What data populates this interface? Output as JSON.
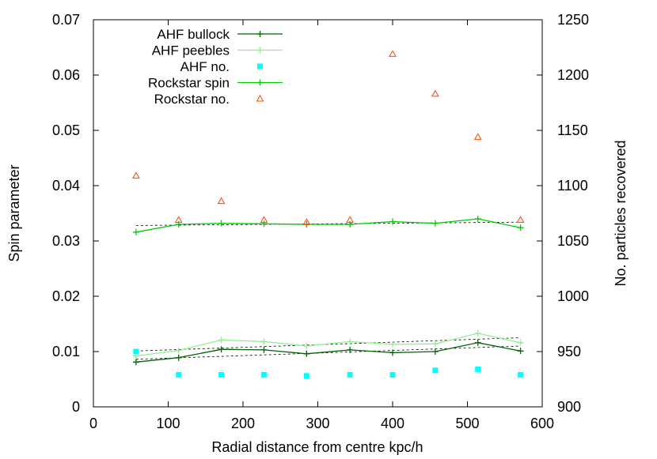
{
  "chart_data": {
    "type": "line",
    "xlabel": "Radial distance from centre kpc/h",
    "ylabel": "Spin parameter",
    "y2label": "No. particles recovered",
    "xlim": [
      0,
      600
    ],
    "ylim": [
      0,
      0.07
    ],
    "y2lim": [
      900,
      1250
    ],
    "xticks": [
      0,
      100,
      200,
      300,
      400,
      500,
      600
    ],
    "yticks": [
      0,
      0.01,
      0.02,
      0.03,
      0.04,
      0.05,
      0.06,
      0.07
    ],
    "y2ticks": [
      900,
      950,
      1000,
      1050,
      1100,
      1150,
      1200,
      1250
    ],
    "xtick_labels": [
      "0",
      "100",
      "200",
      "300",
      "400",
      "500",
      "600"
    ],
    "ytick_labels": [
      "0",
      "0.01",
      "0.02",
      "0.03",
      "0.04",
      "0.05",
      "0.06",
      "0.07"
    ],
    "y2tick_labels": [
      "900",
      "950",
      "1000",
      "1050",
      "1100",
      "1150",
      "1200",
      "1250"
    ],
    "grid": false,
    "legend_position": "top-left",
    "x": [
      57,
      114,
      171,
      228,
      285,
      343,
      400,
      457,
      514,
      571
    ],
    "series": [
      {
        "name": "AHF bullock",
        "axis": "left",
        "style": "line-plus",
        "color": "#006400",
        "values": [
          0.0081,
          0.0089,
          0.0104,
          0.0103,
          0.0096,
          0.0103,
          0.0098,
          0.01,
          0.0116,
          0.0101
        ],
        "fit": [
          0.0086,
          0.011
        ]
      },
      {
        "name": "AHF peebles",
        "axis": "left",
        "style": "line-plus",
        "color": "#90EE90",
        "values": [
          0.0092,
          0.0102,
          0.0121,
          0.0118,
          0.011,
          0.0118,
          0.0113,
          0.0114,
          0.0133,
          0.0116
        ],
        "fit": [
          0.0101,
          0.0125
        ]
      },
      {
        "name": "AHF no.",
        "axis": "right",
        "style": "square",
        "color": "#00FFFF",
        "values": [
          950,
          929,
          929,
          929,
          928,
          929,
          929,
          933,
          934,
          929
        ]
      },
      {
        "name": "Rockstar spin",
        "axis": "left",
        "style": "line-plus",
        "color": "#00CC00",
        "values": [
          0.0316,
          0.033,
          0.0332,
          0.0331,
          0.033,
          0.033,
          0.0335,
          0.0332,
          0.034,
          0.0324
        ],
        "fit": [
          0.0328,
          0.0334
        ]
      },
      {
        "name": "Rockstar no.",
        "axis": "right",
        "style": "triangle",
        "color": "#FF4500",
        "values": [
          1109,
          1069,
          1086,
          1069,
          1067,
          1069,
          1219,
          1183,
          1144,
          1069
        ]
      }
    ]
  }
}
